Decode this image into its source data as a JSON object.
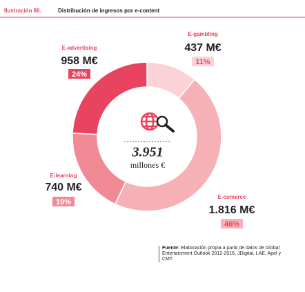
{
  "header": {
    "label": "Ilustración 86.",
    "title": "Distribución de ingresos por e-content"
  },
  "chart_data": {
    "type": "donut",
    "categories": [
      "E-gambling",
      "E-comerce",
      "E-learning",
      "E-advertising"
    ],
    "values": [
      437,
      1816,
      740,
      958
    ],
    "value_labels": [
      "437 M€",
      "1.816 M€",
      "740 M€",
      "958 M€"
    ],
    "shares": [
      "11%",
      "46%",
      "19%",
      "24%"
    ],
    "colors": [
      "#fbd3d6",
      "#f6b1b6",
      "#f08b95",
      "#e8445f"
    ],
    "center_value": "3.951",
    "center_unit": "millones €"
  },
  "source": {
    "label": "Fuente:",
    "text": "Elaboración propia a partir de datos de Global Entertainment Outlook 2012-2016, JDigital, LAE, Apel y CMT"
  }
}
